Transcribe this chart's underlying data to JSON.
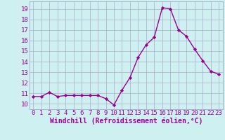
{
  "x": [
    0,
    1,
    2,
    3,
    4,
    5,
    6,
    7,
    8,
    9,
    10,
    11,
    12,
    13,
    14,
    15,
    16,
    17,
    18,
    19,
    20,
    21,
    22,
    23
  ],
  "y": [
    10.7,
    10.7,
    11.1,
    10.7,
    10.8,
    10.8,
    10.8,
    10.8,
    10.8,
    10.5,
    9.9,
    11.3,
    12.5,
    14.4,
    15.6,
    16.3,
    19.1,
    19.0,
    17.0,
    16.4,
    15.2,
    14.1,
    13.1,
    12.8
  ],
  "line_color": "#990099",
  "marker": "D",
  "marker_size": 2.2,
  "linewidth": 1.0,
  "xlabel": "Windchill (Refroidissement éolien,°C)",
  "xlabel_fontsize": 7,
  "xticks": [
    0,
    1,
    2,
    3,
    4,
    5,
    6,
    7,
    8,
    9,
    10,
    11,
    12,
    13,
    14,
    15,
    16,
    17,
    18,
    19,
    20,
    21,
    22,
    23
  ],
  "yticks": [
    10,
    11,
    12,
    13,
    14,
    15,
    16,
    17,
    18,
    19
  ],
  "xlim": [
    -0.5,
    23.5
  ],
  "ylim": [
    9.5,
    19.7
  ],
  "background_color": "#cff0f0",
  "grid_color": "#aaaacc",
  "tick_fontsize": 6.5,
  "tick_color": "#990099",
  "label_color": "#990099",
  "spine_color": "#9999bb"
}
